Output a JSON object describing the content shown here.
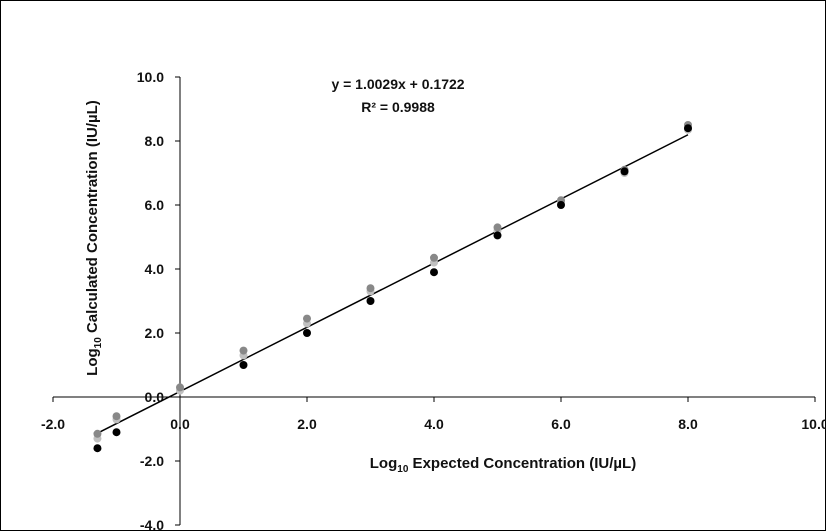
{
  "chart_data": {
    "type": "scatter",
    "title": "",
    "xlabel": {
      "prefix": "Log",
      "sub": "10",
      "suffix": " Expected Concentration (IU/µL)"
    },
    "ylabel": {
      "prefix": "Log",
      "sub": "10",
      "suffix": " Calculated Concentration (IU/µL)"
    },
    "xlim": [
      -2,
      10
    ],
    "ylim": [
      -4,
      10
    ],
    "x_ticks": [
      {
        "value": -2,
        "label": "-2.0"
      },
      {
        "value": 0,
        "label": "0.0"
      },
      {
        "value": 2,
        "label": "2.0"
      },
      {
        "value": 4,
        "label": "4.0"
      },
      {
        "value": 6,
        "label": "6.0"
      },
      {
        "value": 8,
        "label": "8.0"
      },
      {
        "value": 10,
        "label": "10.0"
      }
    ],
    "y_ticks": [
      {
        "value": -4,
        "label": "-4.0"
      },
      {
        "value": -2,
        "label": "-2.0"
      },
      {
        "value": 0,
        "label": "0.0"
      },
      {
        "value": 2,
        "label": "2.0"
      },
      {
        "value": 4,
        "label": "4.0"
      },
      {
        "value": 6,
        "label": "6.0"
      },
      {
        "value": 8,
        "label": "8.0"
      },
      {
        "value": 10,
        "label": "10.0"
      }
    ],
    "grid": false,
    "legend": "none",
    "series": [
      {
        "color": "#000000",
        "x": [
          -1.3,
          -1.0,
          1.0,
          2.0,
          3.0,
          4.0,
          5.0,
          6.0,
          7.0,
          8.0
        ],
        "y": [
          -1.6,
          -1.1,
          1.0,
          2.0,
          3.0,
          3.9,
          5.05,
          6.0,
          7.05,
          8.4
        ]
      },
      {
        "color": "#888888",
        "x": [
          -1.3,
          -1.0,
          0.0,
          1.0,
          2.0,
          3.0,
          4.0,
          5.0,
          6.0,
          7.0,
          8.0
        ],
        "y": [
          -1.15,
          -0.6,
          0.3,
          1.45,
          2.45,
          3.4,
          4.35,
          5.3,
          6.15,
          7.1,
          8.5
        ]
      },
      {
        "color": "#c0c0c0",
        "x": [
          -1.3,
          -1.0,
          0.0,
          1.0,
          2.0,
          3.0,
          4.0,
          5.0,
          6.0,
          7.0,
          8.0
        ],
        "y": [
          -1.3,
          -0.7,
          0.2,
          1.3,
          2.3,
          3.3,
          4.2,
          5.2,
          6.1,
          7.0,
          8.35
        ]
      }
    ],
    "trendline": {
      "slope": 1.0029,
      "intercept": 0.1722,
      "x_range": [
        -1.3,
        8.0
      ],
      "color": "#000000"
    },
    "annotations": [
      "y = 1.0029x + 0.1722",
      "R² = 0.9988"
    ]
  }
}
